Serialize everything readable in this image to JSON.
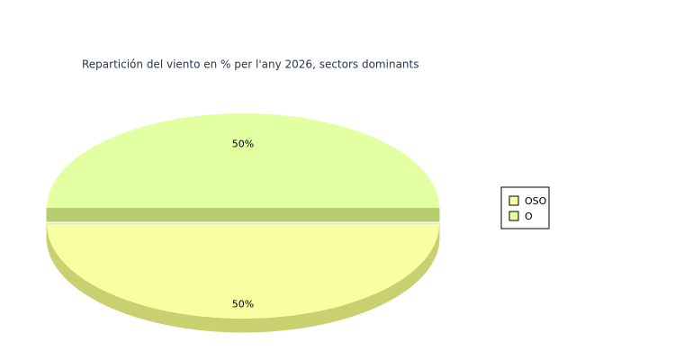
{
  "chart_data": {
    "type": "pie3d",
    "title": "Repartición del viento en % per l'any 2026, sectors dominants",
    "categories": [
      "OSO",
      "O"
    ],
    "values": [
      50,
      50
    ],
    "value_labels": [
      "50%",
      "50%"
    ],
    "colors": [
      "#f8ffa2",
      "#e2ffa2"
    ],
    "side_colors": [
      "#c8d070",
      "#b8cc70"
    ]
  }
}
